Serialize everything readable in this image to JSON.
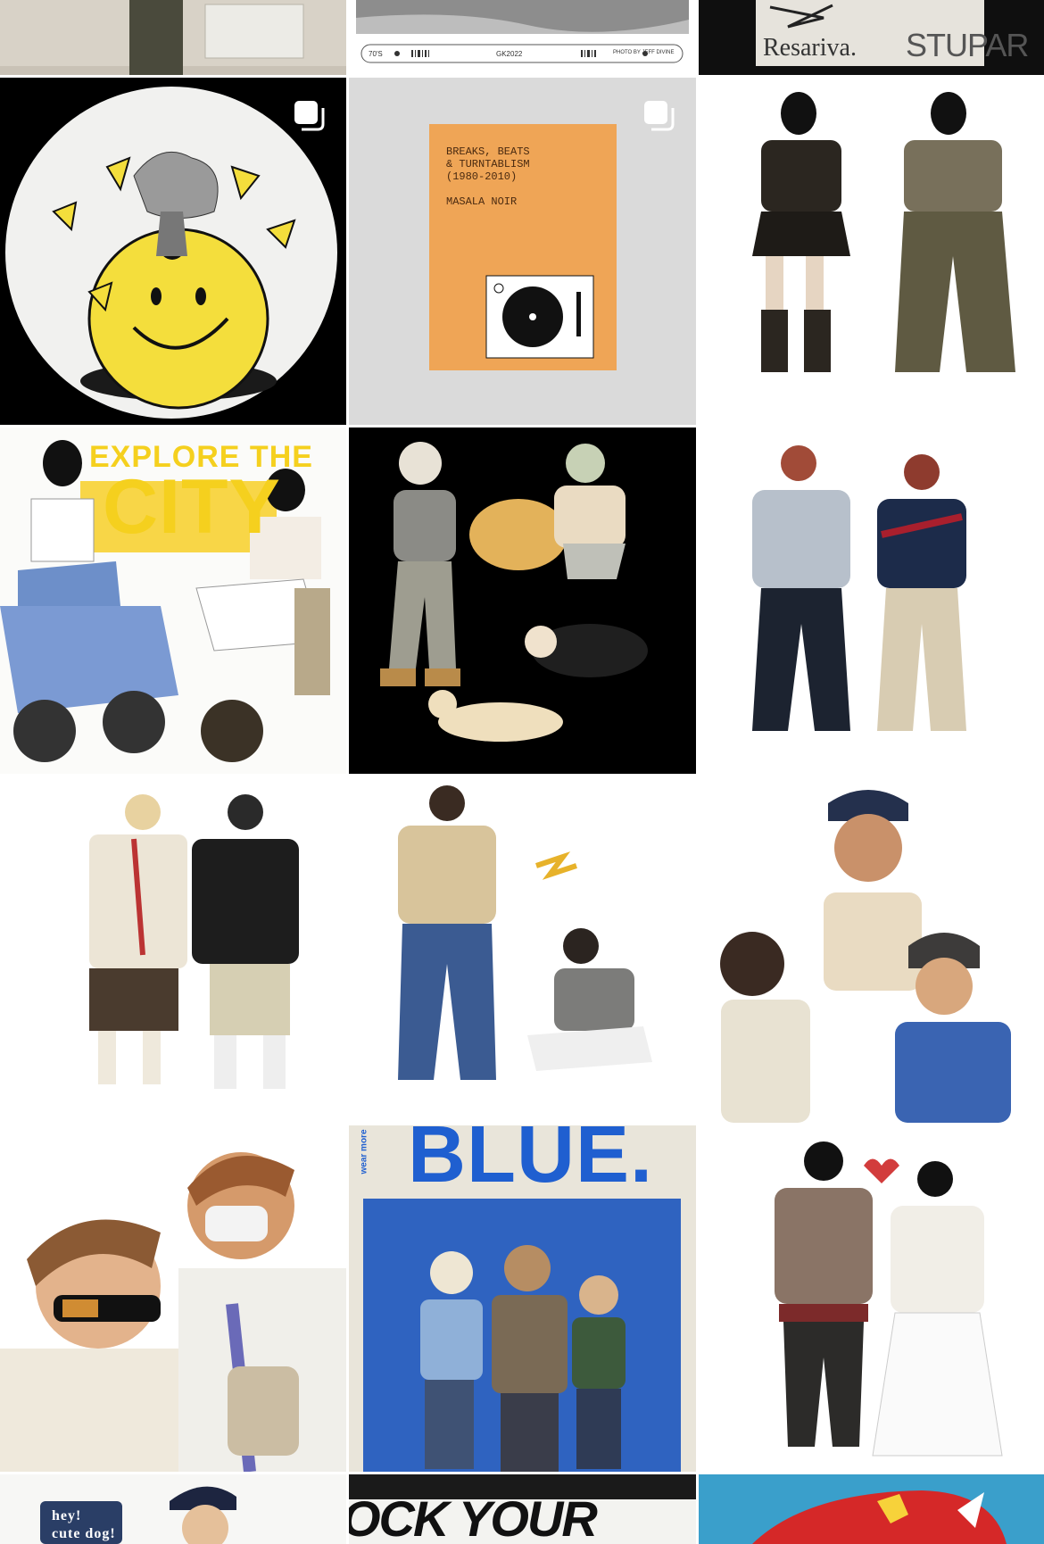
{
  "grid": {
    "row0": {
      "tile2": {
        "code": "GK2022",
        "left_tag": "70'S",
        "credit": "PHOTO BY JEFF DIVINE"
      },
      "tile3": {
        "word1": "Resariva.",
        "word2": "STUPAR"
      }
    },
    "row1": {
      "tile2": {
        "book_lines": "BREAKS, BEATS\n& TURNTABLISM\n(1980-2010)\n\nMASALA NOIR",
        "bg_color": "#efa556"
      }
    },
    "row2": {
      "tile1": {
        "headline_1": "EXPLORE THE",
        "headline_2": "CITY"
      }
    },
    "row4": {
      "tile2": {
        "headline": "BLUE.",
        "side_text": "wear more"
      }
    },
    "row5": {
      "tile1": {
        "sticker_1": "hey!",
        "sticker_2": "cute dog!"
      },
      "tile2": {
        "headline": "OCK YOUR STYL"
      }
    },
    "icons": {
      "multi": "multiple-images-icon"
    },
    "colors": {
      "background": "#ffffff",
      "divider": "#ffffff",
      "accent_yellow": "#f5d01e",
      "accent_blue": "#1f5fd0"
    }
  }
}
